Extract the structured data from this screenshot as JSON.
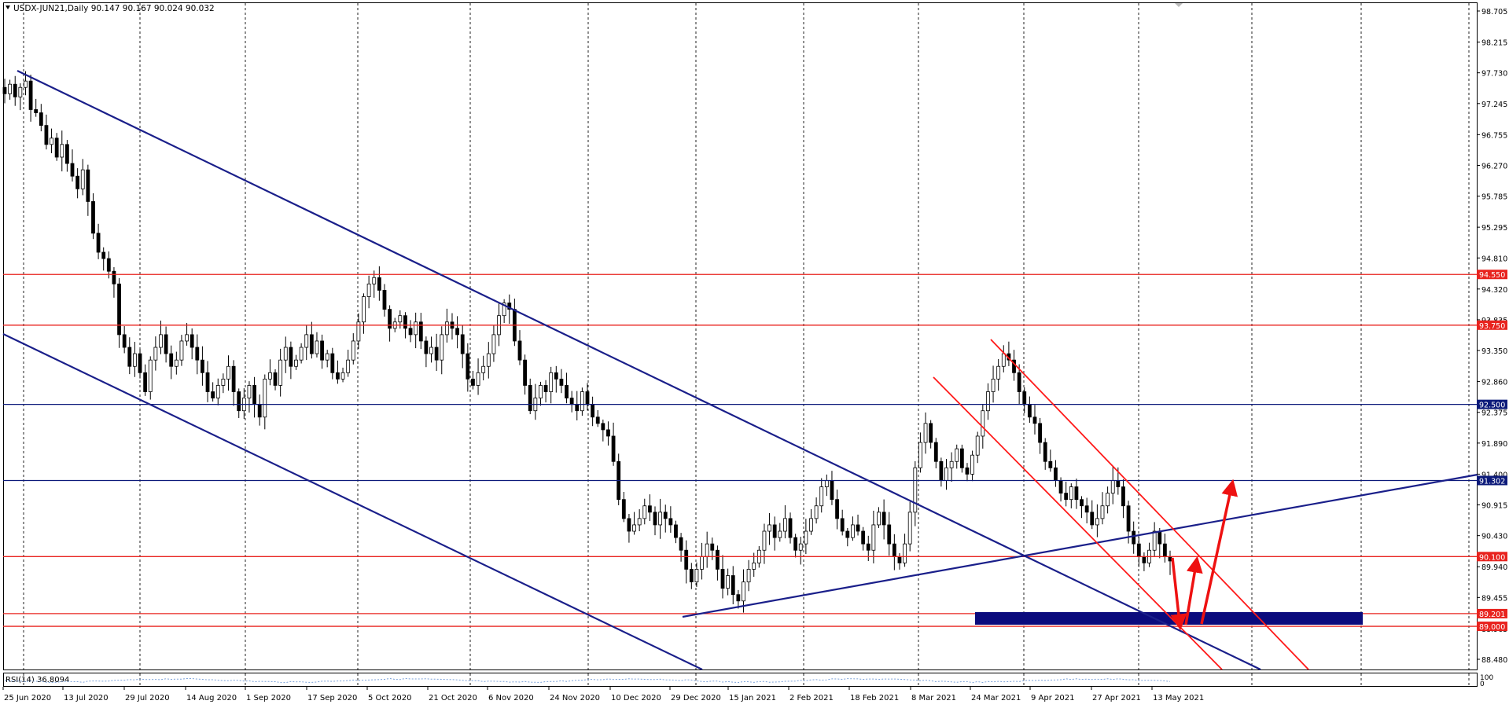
{
  "chart_data": {
    "type": "candlestick",
    "symbol": "USDX-JUN21",
    "timeframe": "Daily",
    "ohlc_readout": {
      "open": "90.147",
      "high": "90.167",
      "low": "90.024",
      "close": "90.032"
    },
    "title": "USDX-JUN21,Daily  90.147 90.167 90.024 90.032",
    "price_axis_ticks": [
      "98.705",
      "98.215",
      "97.730",
      "97.245",
      "96.755",
      "96.270",
      "95.785",
      "95.295",
      "94.810",
      "94.320",
      "93.835",
      "93.350",
      "92.860",
      "92.375",
      "91.890",
      "91.400",
      "90.915",
      "90.430",
      "89.940",
      "89.455",
      "88.965",
      "88.480"
    ],
    "date_axis_ticks": [
      "25 Jun 2020",
      "13 Jul 2020",
      "29 Jul 2020",
      "14 Aug 2020",
      "1 Sep 2020",
      "17 Sep 2020",
      "5 Oct 2020",
      "21 Oct 2020",
      "6 Nov 2020",
      "24 Nov 2020",
      "10 Dec 2020",
      "29 Dec 2020",
      "15 Jan 2021",
      "2 Feb 2021",
      "18 Feb 2021",
      "8 Mar 2021",
      "24 Mar 2021",
      "9 Apr 2021",
      "27 Apr 2021",
      "13 May 2021"
    ],
    "ylim": [
      88.25,
      98.85
    ],
    "current_price": "90.032",
    "closes": [
      97.4,
      97.55,
      97.35,
      97.5,
      97.6,
      97.15,
      97.1,
      96.9,
      96.6,
      96.7,
      96.4,
      96.6,
      96.3,
      96.1,
      95.9,
      96.2,
      95.7,
      95.2,
      94.9,
      94.8,
      94.6,
      94.4,
      93.6,
      93.4,
      93.1,
      93.3,
      93.0,
      92.7,
      93.2,
      93.4,
      93.6,
      93.3,
      93.1,
      93.2,
      93.5,
      93.6,
      93.4,
      93.2,
      93.0,
      92.7,
      92.6,
      92.8,
      92.9,
      93.1,
      92.7,
      92.4,
      92.6,
      92.8,
      92.5,
      92.3,
      92.9,
      93.0,
      92.8,
      93.2,
      93.4,
      93.1,
      93.2,
      93.4,
      93.6,
      93.3,
      93.5,
      93.2,
      93.3,
      93.0,
      92.9,
      93.0,
      93.2,
      93.5,
      93.8,
      94.2,
      94.4,
      94.5,
      94.3,
      94.0,
      93.7,
      93.8,
      93.9,
      93.7,
      93.6,
      93.8,
      93.5,
      93.3,
      93.4,
      93.2,
      93.6,
      93.8,
      93.7,
      93.6,
      93.3,
      92.9,
      92.8,
      93.0,
      93.1,
      93.3,
      93.6,
      93.9,
      94.1,
      94.0,
      93.5,
      93.2,
      92.8,
      92.4,
      92.6,
      92.8,
      92.7,
      93.0,
      92.9,
      92.8,
      92.6,
      92.5,
      92.4,
      92.7,
      92.5,
      92.3,
      92.2,
      92.1,
      92.0,
      91.6,
      91.0,
      90.7,
      90.5,
      90.6,
      90.7,
      90.9,
      90.8,
      90.6,
      90.8,
      90.7,
      90.6,
      90.4,
      90.2,
      89.9,
      89.7,
      89.9,
      90.1,
      90.3,
      90.2,
      89.9,
      89.6,
      89.8,
      89.5,
      89.4,
      89.7,
      89.9,
      90.0,
      90.2,
      90.5,
      90.6,
      90.4,
      90.5,
      90.7,
      90.4,
      90.2,
      90.3,
      90.5,
      90.7,
      90.9,
      91.2,
      91.3,
      91.0,
      90.7,
      90.5,
      90.4,
      90.6,
      90.5,
      90.3,
      90.2,
      90.6,
      90.8,
      90.6,
      90.3,
      90.1,
      90.0,
      90.3,
      90.8,
      91.5,
      91.9,
      92.2,
      91.9,
      91.6,
      91.3,
      91.5,
      91.6,
      91.8,
      91.5,
      91.4,
      91.7,
      92.0,
      92.4,
      92.7,
      92.9,
      93.1,
      93.3,
      93.2,
      93.0,
      92.7,
      92.5,
      92.3,
      92.2,
      91.9,
      91.6,
      91.5,
      91.3,
      91.1,
      91.0,
      91.2,
      91.0,
      90.9,
      90.8,
      90.6,
      90.7,
      90.9,
      91.1,
      91.3,
      91.2,
      90.9,
      90.5,
      90.3,
      90.1,
      90.0,
      90.2,
      90.5,
      90.3,
      90.1,
      90.03
    ],
    "horizontal_levels": [
      {
        "label": "94.550",
        "value": 94.55,
        "color": "#e8231e"
      },
      {
        "label": "93.750",
        "value": 93.75,
        "color": "#e8231e"
      },
      {
        "label": "92.500",
        "value": 92.5,
        "color": "#0c1a7a"
      },
      {
        "label": "91.302",
        "value": 91.3,
        "color": "#0c1a7a"
      },
      {
        "label": "90.100",
        "value": 90.1,
        "color": "#e8231e"
      },
      {
        "label": "89.201",
        "value": 89.2,
        "color": "#e8231e"
      },
      {
        "label": "89.000",
        "value": 89.0,
        "color": "#e8231e"
      }
    ],
    "indicator": {
      "name": "RSI(14)",
      "label": "RSI(14) 36.8094",
      "axis_labels": [
        "100",
        "0"
      ]
    },
    "colors": {
      "candle": "#000000",
      "red_level": "#e8231e",
      "blue_level": "#0c1a7a",
      "trendline": "#1a1f8a",
      "channel": "#ff1a1a",
      "zone": "#0b0b7d",
      "arrow": "#ee1111",
      "grid": "#222222",
      "price_tag_text": "#ffffff"
    }
  }
}
